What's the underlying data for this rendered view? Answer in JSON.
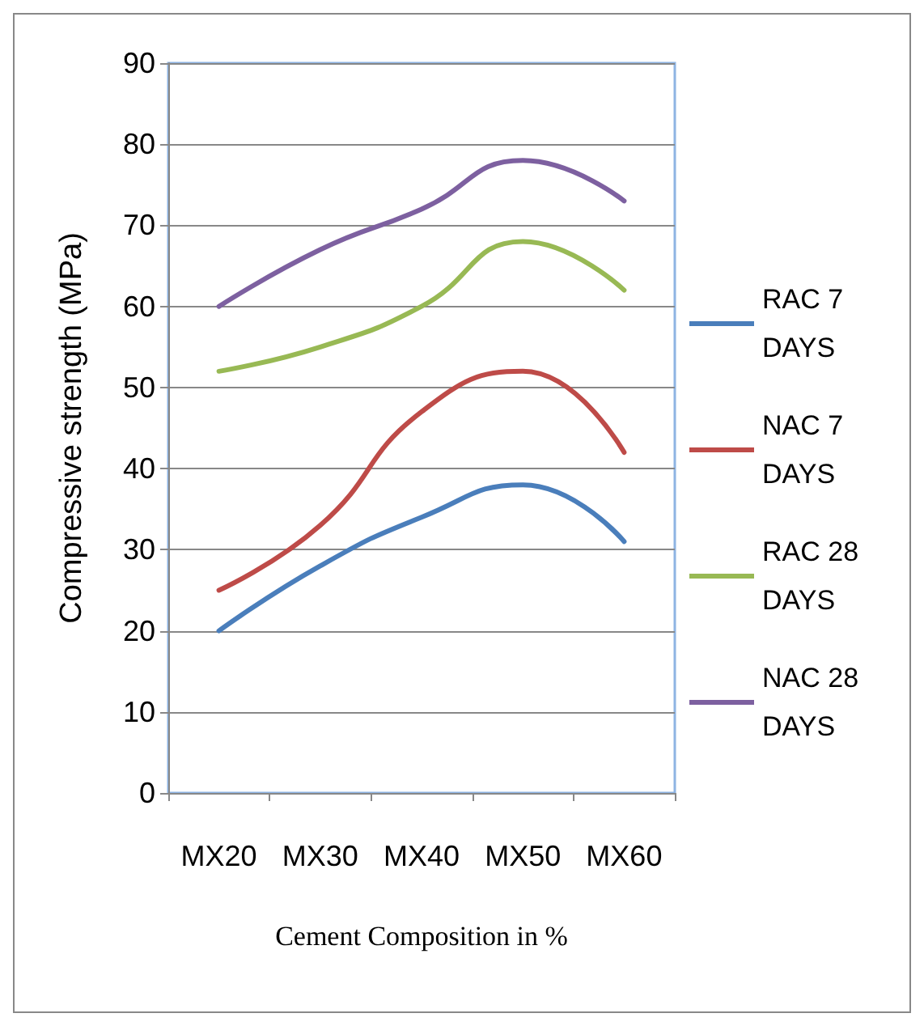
{
  "chart_data": {
    "type": "line",
    "xlabel": "Cement Composition in %",
    "ylabel": "Compressive strength (MPa)",
    "categories": [
      "MX20",
      "MX30",
      "MX40",
      "MX50",
      "MX60"
    ],
    "series": [
      {
        "name": "RAC 7 DAYS",
        "color": "#4a7ebb",
        "values": [
          20,
          28,
          34,
          38,
          31
        ]
      },
      {
        "name": "NAC 7 DAYS",
        "color": "#be4b48",
        "values": [
          25,
          33,
          47,
          52,
          42
        ]
      },
      {
        "name": "RAC 28 DAYS",
        "color": "#98b954",
        "values": [
          52,
          55,
          60,
          68,
          62
        ]
      },
      {
        "name": "NAC 28 DAYS",
        "color": "#7d60a0",
        "values": [
          60,
          67,
          72,
          78,
          73
        ]
      }
    ],
    "ylim": [
      0,
      90
    ],
    "yticks": [
      0,
      10,
      20,
      30,
      40,
      50,
      60,
      70,
      80,
      90
    ],
    "grid": "y",
    "legend": "right",
    "marker": "none",
    "line_style": "solid"
  }
}
